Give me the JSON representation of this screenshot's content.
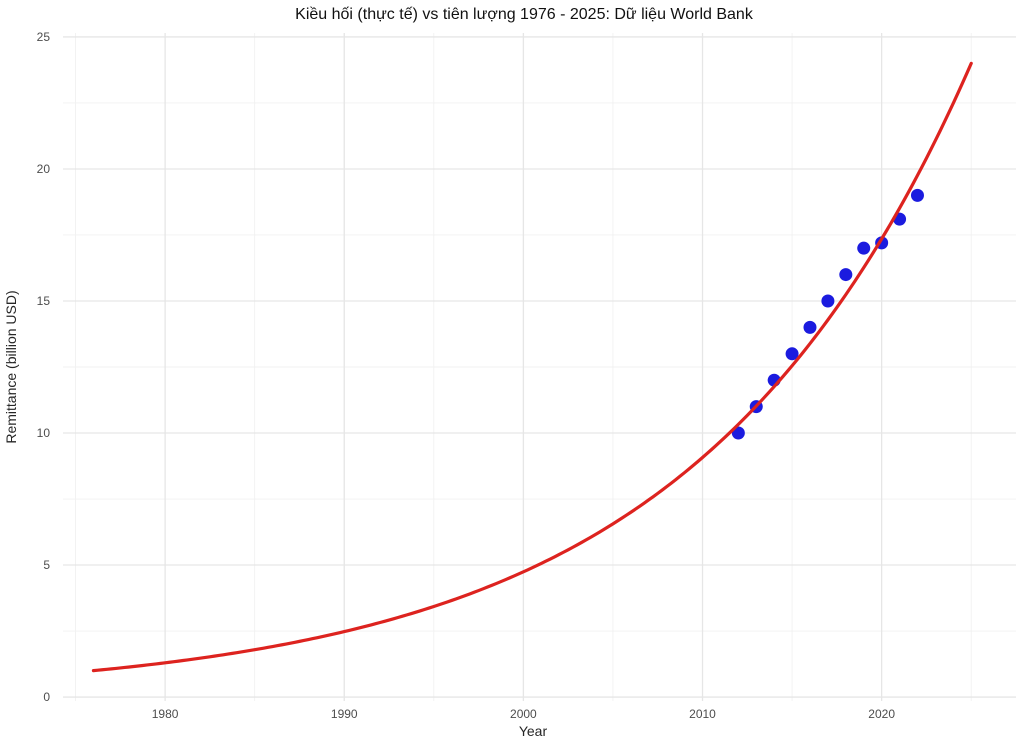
{
  "chart_data": {
    "type": "scatter",
    "title": "Kiều hối (thực tế) vs tiên lượng 1976 - 2025: Dữ liệu World Bank",
    "xlabel": "Year",
    "ylabel": "Remittance (billion USD)",
    "xlim": [
      1974.3,
      2027.5
    ],
    "ylim": [
      -0.15,
      25.15
    ],
    "x_ticks": [
      1980,
      1990,
      2000,
      2010,
      2020
    ],
    "x_minor_ticks": [
      1975,
      1985,
      1995,
      2005,
      2015,
      2025
    ],
    "y_ticks": [
      0,
      5,
      10,
      15,
      20,
      25
    ],
    "y_minor_ticks": [
      2.5,
      7.5,
      12.5,
      17.5,
      22.5
    ],
    "grid": {
      "enabled": true,
      "major_color": "#e6e6e6",
      "minor_color": "#f1f1f1"
    },
    "legend_position": "none",
    "colors": {
      "background": "#ffffff",
      "title_text": "#111111",
      "tick_text": "#4d4d4d",
      "axis_label_text": "#262626"
    },
    "series": [
      {
        "name": "actual-remittance",
        "type": "scatter",
        "color": "#1b1bdf",
        "marker_radius": 6.5,
        "points": [
          [
            2012,
            10
          ],
          [
            2013,
            11
          ],
          [
            2014,
            12
          ],
          [
            2015,
            13
          ],
          [
            2016,
            14
          ],
          [
            2017,
            15
          ],
          [
            2018,
            16
          ],
          [
            2019,
            17
          ],
          [
            2020,
            17.2
          ],
          [
            2021,
            18.1
          ],
          [
            2022,
            19
          ]
        ]
      },
      {
        "name": "forecast-exponential",
        "type": "line",
        "color": "#dd231f",
        "line_width": 3.2,
        "model": "exponential",
        "start": [
          1976,
          1.0
        ],
        "end": [
          2025,
          24.0
        ]
      }
    ]
  }
}
